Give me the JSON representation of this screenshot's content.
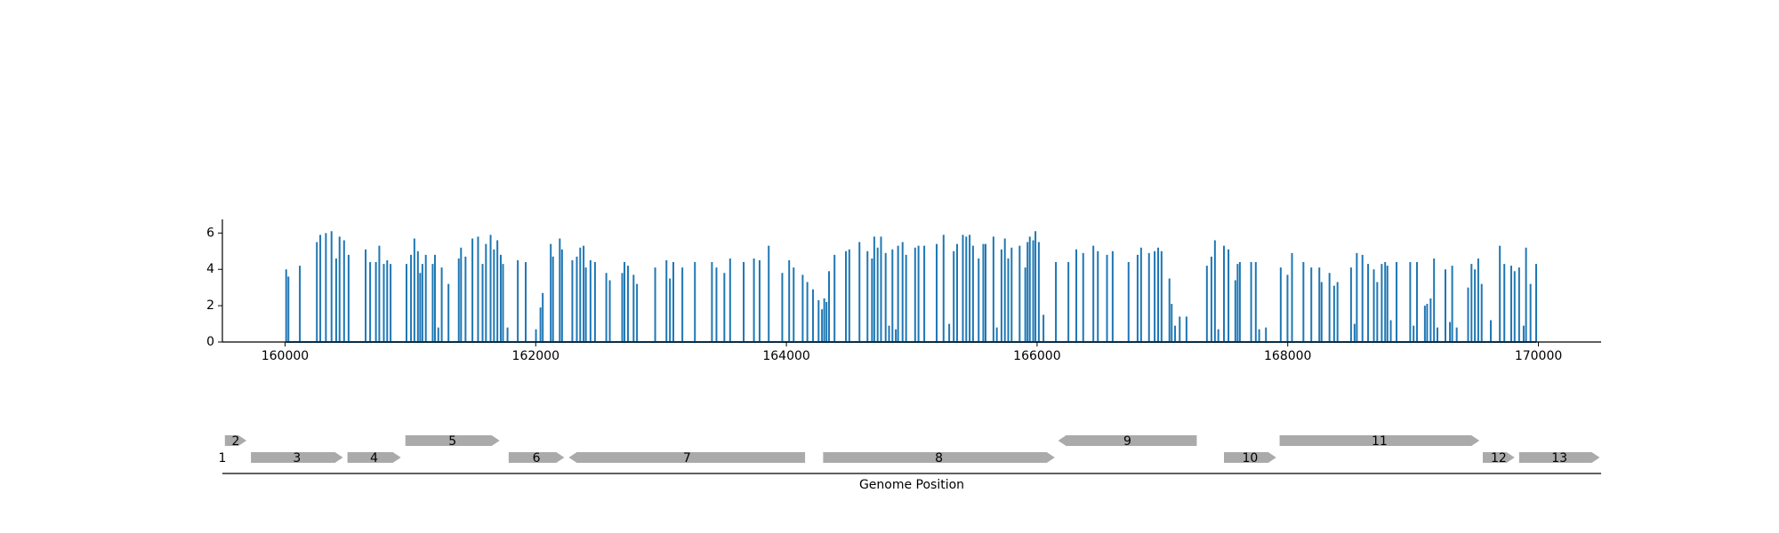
{
  "chart_data": [
    {
      "type": "stem",
      "color": "#1f77b4",
      "xlim": [
        159500,
        170500
      ],
      "xticks": [
        160000,
        162000,
        164000,
        166000,
        168000,
        170000
      ],
      "ylim": [
        0,
        6.75
      ],
      "yticks": [
        0,
        2,
        4,
        6
      ],
      "x": [
        160009,
        160027,
        160118,
        160254,
        160281,
        160326,
        160371,
        160408,
        160435,
        160471,
        160507,
        160643,
        160679,
        160725,
        160752,
        160788,
        160815,
        160842,
        160969,
        161005,
        161032,
        161060,
        161078,
        161096,
        161123,
        161178,
        161196,
        161223,
        161250,
        161304,
        161386,
        161404,
        161440,
        161495,
        161540,
        161576,
        161603,
        161640,
        161667,
        161694,
        161721,
        161739,
        161775,
        161857,
        161920,
        162002,
        162038,
        162056,
        162120,
        162138,
        162192,
        162210,
        162292,
        162328,
        162355,
        162382,
        162400,
        162437,
        162473,
        162563,
        162591,
        162690,
        162708,
        162736,
        162781,
        162808,
        162953,
        163043,
        163071,
        163098,
        163170,
        163270,
        163406,
        163442,
        163505,
        163551,
        163659,
        163741,
        163786,
        163859,
        163967,
        164022,
        164058,
        164130,
        164167,
        164212,
        164257,
        164284,
        164302,
        164320,
        164340,
        164384,
        164475,
        164502,
        164583,
        164647,
        164683,
        164701,
        164728,
        164755,
        164792,
        164819,
        164846,
        164873,
        164891,
        164927,
        164955,
        165027,
        165054,
        165100,
        165199,
        165254,
        165299,
        165335,
        165362,
        165408,
        165435,
        165462,
        165489,
        165534,
        165571,
        165589,
        165652,
        165679,
        165716,
        165743,
        165770,
        165797,
        165861,
        165906,
        165924,
        165942,
        165969,
        165987,
        166014,
        166051,
        166150,
        166250,
        166313,
        166368,
        166449,
        166485,
        166558,
        166603,
        166730,
        166802,
        166830,
        166893,
        166938,
        166966,
        166993,
        167056,
        167074,
        167101,
        167138,
        167192,
        167355,
        167391,
        167419,
        167446,
        167491,
        167527,
        167582,
        167600,
        167618,
        167708,
        167745,
        167772,
        167826,
        167944,
        167998,
        168034,
        168125,
        168188,
        168252,
        168270,
        168333,
        168370,
        168397,
        168505,
        168533,
        168551,
        168596,
        168641,
        168687,
        168714,
        168750,
        168777,
        168795,
        168822,
        168868,
        168977,
        169004,
        169031,
        169094,
        169112,
        169140,
        169167,
        169194,
        169258,
        169294,
        169312,
        169348,
        169439,
        169466,
        169493,
        169520,
        169547,
        169620,
        169692,
        169728,
        169783,
        169810,
        169846,
        169882,
        169901,
        169937,
        169982
      ],
      "values": [
        4.0,
        3.6,
        4.2,
        5.5,
        5.9,
        6.0,
        6.1,
        4.6,
        5.8,
        5.6,
        4.8,
        5.1,
        4.4,
        4.4,
        5.3,
        4.3,
        4.5,
        4.3,
        4.3,
        4.8,
        5.7,
        5.0,
        3.8,
        4.3,
        4.8,
        4.3,
        4.8,
        0.8,
        4.1,
        3.2,
        4.6,
        5.2,
        4.7,
        5.7,
        5.8,
        4.3,
        5.4,
        5.9,
        5.1,
        5.6,
        4.8,
        4.3,
        0.8,
        4.5,
        4.4,
        0.7,
        1.9,
        2.7,
        5.4,
        4.7,
        5.7,
        5.1,
        4.5,
        4.7,
        5.2,
        5.3,
        4.1,
        4.5,
        4.4,
        3.8,
        3.4,
        3.8,
        4.4,
        4.2,
        3.7,
        3.2,
        4.1,
        4.5,
        3.5,
        4.4,
        4.1,
        4.4,
        4.4,
        4.1,
        3.8,
        4.6,
        4.4,
        4.6,
        4.5,
        5.3,
        3.8,
        4.5,
        4.1,
        3.7,
        3.3,
        2.9,
        2.3,
        1.8,
        2.4,
        2.2,
        3.9,
        4.8,
        5.0,
        5.1,
        5.5,
        5.0,
        4.6,
        5.8,
        5.2,
        5.8,
        4.9,
        0.9,
        5.1,
        0.7,
        5.3,
        5.5,
        4.8,
        5.2,
        5.3,
        5.3,
        5.4,
        5.9,
        1.0,
        5.0,
        5.4,
        5.9,
        5.8,
        5.9,
        5.3,
        4.6,
        5.4,
        5.4,
        5.8,
        0.8,
        5.1,
        5.7,
        4.6,
        5.2,
        5.3,
        4.1,
        5.5,
        5.8,
        5.6,
        6.1,
        5.5,
        1.5,
        4.4,
        4.4,
        5.1,
        4.9,
        5.3,
        5.0,
        4.8,
        5.0,
        4.4,
        4.8,
        5.2,
        4.9,
        5.0,
        5.2,
        5.0,
        3.5,
        2.1,
        0.9,
        1.4,
        1.4,
        4.2,
        4.7,
        5.6,
        0.7,
        5.3,
        5.1,
        3.4,
        4.3,
        4.4,
        4.4,
        4.4,
        0.7,
        0.8,
        4.1,
        3.7,
        4.9,
        4.4,
        4.1,
        4.1,
        3.3,
        3.8,
        3.1,
        3.3,
        4.1,
        1.0,
        4.9,
        4.8,
        4.3,
        4.0,
        3.3,
        4.3,
        4.4,
        4.2,
        1.2,
        4.4,
        4.4,
        0.9,
        4.4,
        2.0,
        2.1,
        2.4,
        4.6,
        0.8,
        4.0,
        1.1,
        4.2,
        0.8,
        3.0,
        4.3,
        4.0,
        4.6,
        3.2,
        1.2,
        5.3,
        4.3,
        4.2,
        3.9,
        4.1,
        0.9,
        5.2,
        3.2,
        4.3
      ]
    },
    {
      "type": "genes",
      "color": "#aaaaaa",
      "xlabel": "Genome Position",
      "xlim": [
        159500,
        170500
      ],
      "features": [
        {
          "label": "1",
          "start": 159500,
          "end": 159500,
          "strand": 1,
          "level": 0
        },
        {
          "label": "2",
          "start": 159520,
          "end": 159692,
          "strand": 1,
          "level": 1
        },
        {
          "label": "3",
          "start": 159728,
          "end": 160462,
          "strand": 1,
          "level": 0
        },
        {
          "label": "4",
          "start": 160498,
          "end": 160924,
          "strand": 1,
          "level": 0
        },
        {
          "label": "5",
          "start": 160960,
          "end": 161712,
          "strand": 1,
          "level": 1
        },
        {
          "label": "6",
          "start": 161784,
          "end": 162228,
          "strand": 1,
          "level": 0
        },
        {
          "label": "7",
          "start": 162264,
          "end": 164149,
          "strand": -1,
          "level": 0
        },
        {
          "label": "8",
          "start": 164293,
          "end": 166141,
          "strand": 1,
          "level": 0
        },
        {
          "label": "9",
          "start": 166168,
          "end": 167274,
          "strand": -1,
          "level": 1
        },
        {
          "label": "10",
          "start": 167491,
          "end": 167908,
          "strand": 1,
          "level": 0
        },
        {
          "label": "11",
          "start": 167935,
          "end": 169529,
          "strand": 1,
          "level": 1
        },
        {
          "label": "12",
          "start": 169556,
          "end": 169810,
          "strand": 1,
          "level": 0
        },
        {
          "label": "13",
          "start": 169846,
          "end": 170489,
          "strand": 1,
          "level": 0
        }
      ]
    }
  ]
}
